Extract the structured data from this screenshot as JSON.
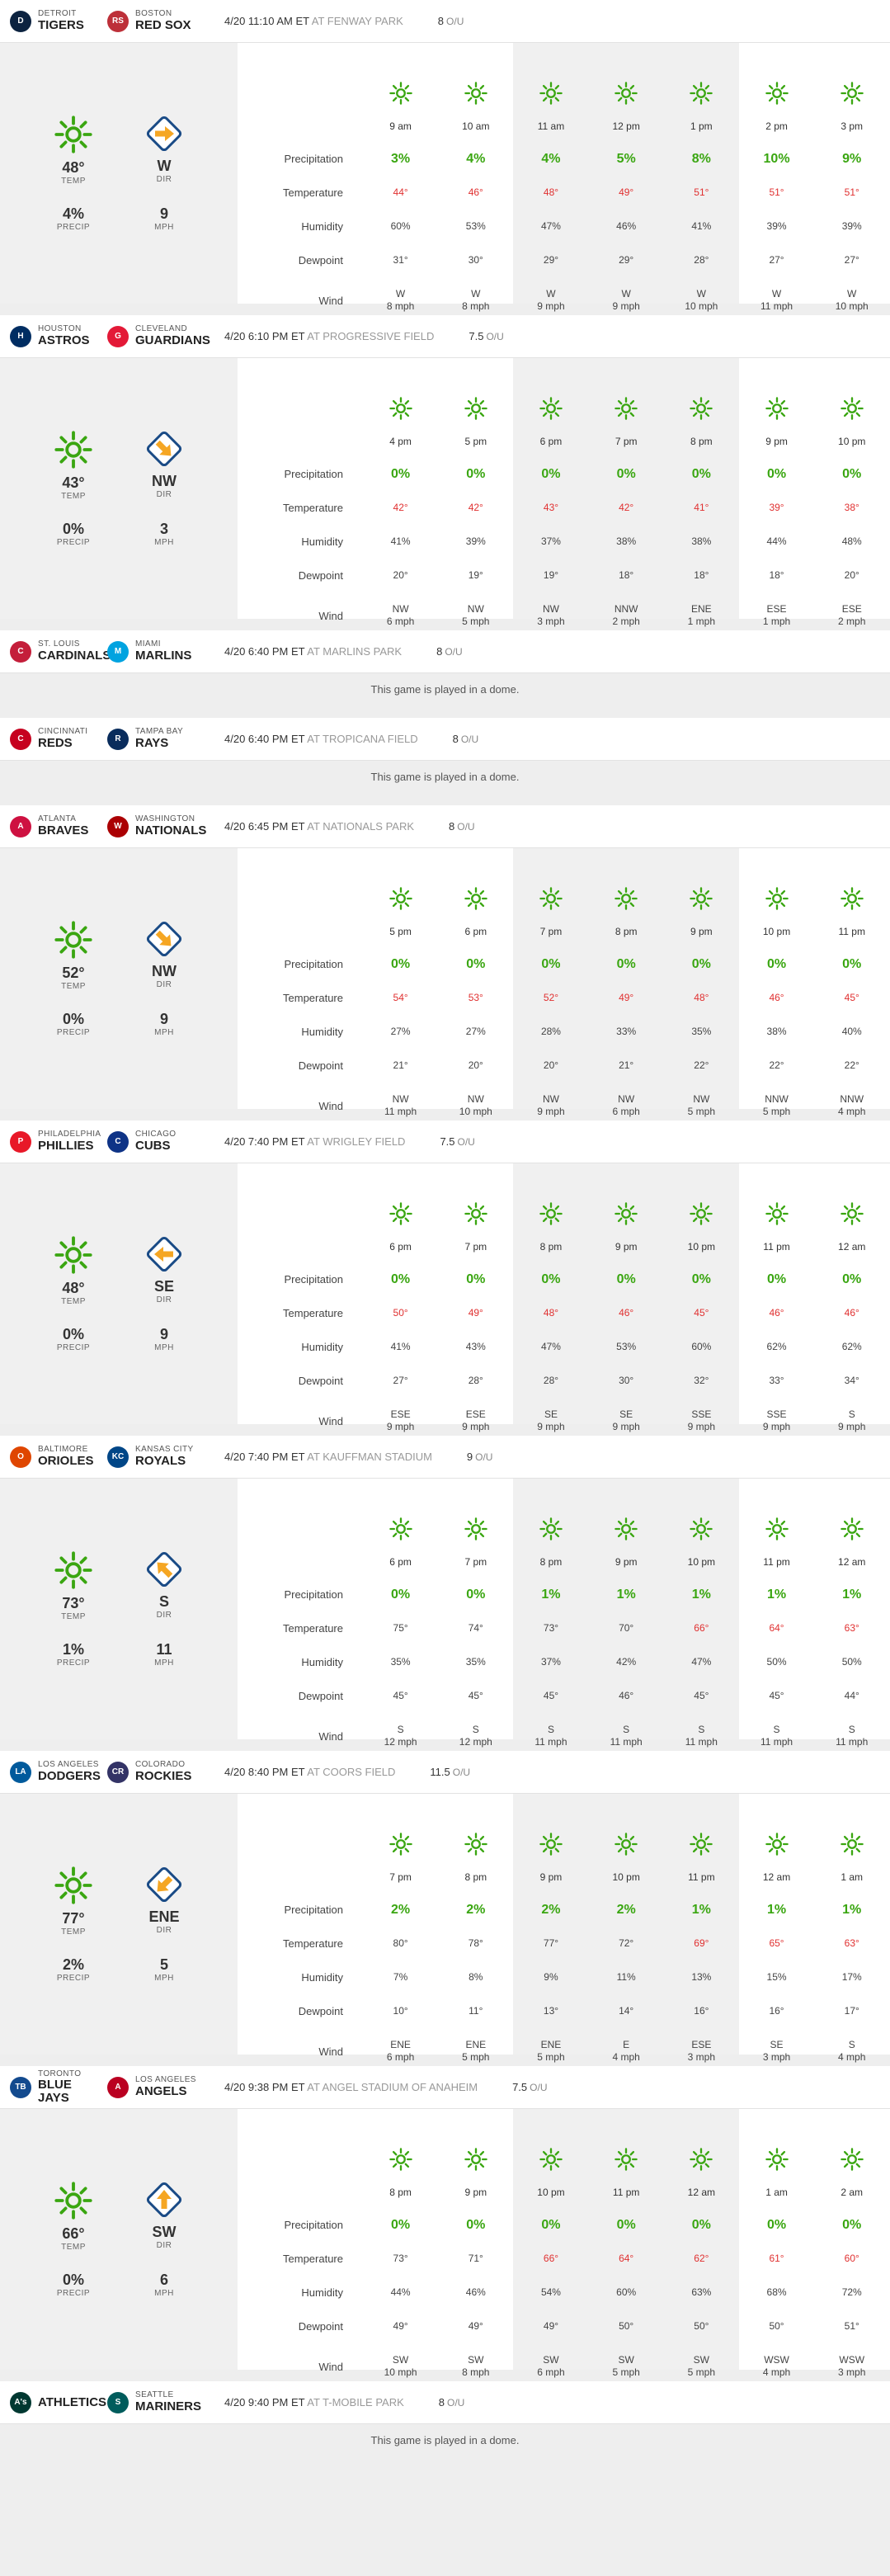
{
  "labels": {
    "temp": "TEMP",
    "precip": "PRECIP",
    "dir": "DIR",
    "mph": "MPH",
    "ou": "O/U",
    "dome": "This game is played in a dome.",
    "rows": [
      "Precipitation",
      "Temperature",
      "Humidity",
      "Dewpoint",
      "Wind"
    ]
  },
  "colors": {
    "sun": "#3aa611",
    "arrow": "#f5a623",
    "hot": "#e03030",
    "precip": "#3aa611"
  },
  "games": [
    {
      "away": {
        "city": "DETROIT",
        "name": "TIGERS",
        "logo": "D",
        "color": "#0c2340"
      },
      "home": {
        "city": "BOSTON",
        "name": "RED SOX",
        "logo": "RS",
        "color": "#bd3039"
      },
      "time": "4/20 11:10 AM ET",
      "venue": "AT FENWAY PARK",
      "ou": "8",
      "dome": false,
      "summary": {
        "temp": "48°",
        "precip": "4%",
        "dir": "W",
        "mph": "9",
        "rot": 90
      },
      "bands": [
        [
          2,
          4
        ]
      ],
      "hours": [
        {
          "t": "9 am",
          "p": "3%",
          "tmp": "44°",
          "hot": true,
          "h": "60%",
          "d": "31°",
          "wd": "W",
          "ws": "8 mph"
        },
        {
          "t": "10 am",
          "p": "4%",
          "tmp": "46°",
          "hot": true,
          "h": "53%",
          "d": "30°",
          "wd": "W",
          "ws": "8 mph"
        },
        {
          "t": "11 am",
          "p": "4%",
          "tmp": "48°",
          "hot": true,
          "h": "47%",
          "d": "29°",
          "wd": "W",
          "ws": "9 mph"
        },
        {
          "t": "12 pm",
          "p": "5%",
          "tmp": "49°",
          "hot": true,
          "h": "46%",
          "d": "29°",
          "wd": "W",
          "ws": "9 mph"
        },
        {
          "t": "1 pm",
          "p": "8%",
          "tmp": "51°",
          "hot": true,
          "h": "41%",
          "d": "28°",
          "wd": "W",
          "ws": "10 mph"
        },
        {
          "t": "2 pm",
          "p": "10%",
          "tmp": "51°",
          "hot": true,
          "h": "39%",
          "d": "27°",
          "wd": "W",
          "ws": "11 mph"
        },
        {
          "t": "3 pm",
          "p": "9%",
          "tmp": "51°",
          "hot": true,
          "h": "39%",
          "d": "27°",
          "wd": "W",
          "ws": "10 mph"
        }
      ]
    },
    {
      "away": {
        "city": "HOUSTON",
        "name": "ASTROS",
        "logo": "H",
        "color": "#002d62"
      },
      "home": {
        "city": "CLEVELAND",
        "name": "GUARDIANS",
        "logo": "G",
        "color": "#e31937"
      },
      "time": "4/20 6:10 PM ET",
      "venue": "AT PROGRESSIVE FIELD",
      "ou": "7.5",
      "dome": false,
      "summary": {
        "temp": "43°",
        "precip": "0%",
        "dir": "NW",
        "mph": "3",
        "rot": 135
      },
      "bands": [
        [
          2,
          4
        ]
      ],
      "hours": [
        {
          "t": "4 pm",
          "p": "0%",
          "tmp": "42°",
          "hot": true,
          "h": "41%",
          "d": "20°",
          "wd": "NW",
          "ws": "6 mph"
        },
        {
          "t": "5 pm",
          "p": "0%",
          "tmp": "42°",
          "hot": true,
          "h": "39%",
          "d": "19°",
          "wd": "NW",
          "ws": "5 mph"
        },
        {
          "t": "6 pm",
          "p": "0%",
          "tmp": "43°",
          "hot": true,
          "h": "37%",
          "d": "19°",
          "wd": "NW",
          "ws": "3 mph"
        },
        {
          "t": "7 pm",
          "p": "0%",
          "tmp": "42°",
          "hot": true,
          "h": "38%",
          "d": "18°",
          "wd": "NNW",
          "ws": "2 mph"
        },
        {
          "t": "8 pm",
          "p": "0%",
          "tmp": "41°",
          "hot": true,
          "h": "38%",
          "d": "18°",
          "wd": "ENE",
          "ws": "1 mph"
        },
        {
          "t": "9 pm",
          "p": "0%",
          "tmp": "39°",
          "hot": true,
          "h": "44%",
          "d": "18°",
          "wd": "ESE",
          "ws": "1 mph"
        },
        {
          "t": "10 pm",
          "p": "0%",
          "tmp": "38°",
          "hot": true,
          "h": "48%",
          "d": "20°",
          "wd": "ESE",
          "ws": "2 mph"
        }
      ]
    },
    {
      "away": {
        "city": "ST. LOUIS",
        "name": "CARDINALS",
        "logo": "C",
        "color": "#c41e3a"
      },
      "home": {
        "city": "MIAMI",
        "name": "MARLINS",
        "logo": "M",
        "color": "#00a3e0"
      },
      "time": "4/20 6:40 PM ET",
      "venue": "AT MARLINS PARK",
      "ou": "8",
      "dome": true
    },
    {
      "away": {
        "city": "CINCINNATI",
        "name": "REDS",
        "logo": "C",
        "color": "#c6011f"
      },
      "home": {
        "city": "TAMPA BAY",
        "name": "RAYS",
        "logo": "R",
        "color": "#092c5c"
      },
      "time": "4/20 6:40 PM ET",
      "venue": "AT TROPICANA FIELD",
      "ou": "8",
      "dome": true
    },
    {
      "away": {
        "city": "ATLANTA",
        "name": "BRAVES",
        "logo": "A",
        "color": "#ce1141"
      },
      "home": {
        "city": "WASHINGTON",
        "name": "NATIONALS",
        "logo": "W",
        "color": "#ab0003"
      },
      "time": "4/20 6:45 PM ET",
      "venue": "AT NATIONALS PARK",
      "ou": "8",
      "dome": false,
      "summary": {
        "temp": "52°",
        "precip": "0%",
        "dir": "NW",
        "mph": "9",
        "rot": 135
      },
      "bands": [
        [
          2,
          4
        ]
      ],
      "hours": [
        {
          "t": "5 pm",
          "p": "0%",
          "tmp": "54°",
          "hot": true,
          "h": "27%",
          "d": "21°",
          "wd": "NW",
          "ws": "11 mph"
        },
        {
          "t": "6 pm",
          "p": "0%",
          "tmp": "53°",
          "hot": true,
          "h": "27%",
          "d": "20°",
          "wd": "NW",
          "ws": "10 mph"
        },
        {
          "t": "7 pm",
          "p": "0%",
          "tmp": "52°",
          "hot": true,
          "h": "28%",
          "d": "20°",
          "wd": "NW",
          "ws": "9 mph"
        },
        {
          "t": "8 pm",
          "p": "0%",
          "tmp": "49°",
          "hot": true,
          "h": "33%",
          "d": "21°",
          "wd": "NW",
          "ws": "6 mph"
        },
        {
          "t": "9 pm",
          "p": "0%",
          "tmp": "48°",
          "hot": true,
          "h": "35%",
          "d": "22°",
          "wd": "NW",
          "ws": "5 mph"
        },
        {
          "t": "10 pm",
          "p": "0%",
          "tmp": "46°",
          "hot": true,
          "h": "38%",
          "d": "22°",
          "wd": "NNW",
          "ws": "5 mph"
        },
        {
          "t": "11 pm",
          "p": "0%",
          "tmp": "45°",
          "hot": true,
          "h": "40%",
          "d": "22°",
          "wd": "NNW",
          "ws": "4 mph"
        }
      ]
    },
    {
      "away": {
        "city": "PHILADELPHIA",
        "name": "PHILLIES",
        "logo": "P",
        "color": "#e81828"
      },
      "home": {
        "city": "CHICAGO",
        "name": "CUBS",
        "logo": "C",
        "color": "#0e3386"
      },
      "time": "4/20 7:40 PM ET",
      "venue": "AT WRIGLEY FIELD",
      "ou": "7.5",
      "dome": false,
      "summary": {
        "temp": "48°",
        "precip": "0%",
        "dir": "SE",
        "mph": "9",
        "rot": 270
      },
      "bands": [
        [
          2,
          4
        ]
      ],
      "hours": [
        {
          "t": "6 pm",
          "p": "0%",
          "tmp": "50°",
          "hot": true,
          "h": "41%",
          "d": "27°",
          "wd": "ESE",
          "ws": "9 mph"
        },
        {
          "t": "7 pm",
          "p": "0%",
          "tmp": "49°",
          "hot": true,
          "h": "43%",
          "d": "28°",
          "wd": "ESE",
          "ws": "9 mph"
        },
        {
          "t": "8 pm",
          "p": "0%",
          "tmp": "48°",
          "hot": true,
          "h": "47%",
          "d": "28°",
          "wd": "SE",
          "ws": "9 mph"
        },
        {
          "t": "9 pm",
          "p": "0%",
          "tmp": "46°",
          "hot": true,
          "h": "53%",
          "d": "30°",
          "wd": "SE",
          "ws": "9 mph"
        },
        {
          "t": "10 pm",
          "p": "0%",
          "tmp": "45°",
          "hot": true,
          "h": "60%",
          "d": "32°",
          "wd": "SSE",
          "ws": "9 mph"
        },
        {
          "t": "11 pm",
          "p": "0%",
          "tmp": "46°",
          "hot": true,
          "h": "62%",
          "d": "33°",
          "wd": "SSE",
          "ws": "9 mph"
        },
        {
          "t": "12 am",
          "p": "0%",
          "tmp": "46°",
          "hot": true,
          "h": "62%",
          "d": "34°",
          "wd": "S",
          "ws": "9 mph"
        }
      ]
    },
    {
      "away": {
        "city": "BALTIMORE",
        "name": "ORIOLES",
        "logo": "O",
        "color": "#df4601"
      },
      "home": {
        "city": "KANSAS CITY",
        "name": "ROYALS",
        "logo": "KC",
        "color": "#004687"
      },
      "time": "4/20 7:40 PM ET",
      "venue": "AT KAUFFMAN STADIUM",
      "ou": "9",
      "dome": false,
      "summary": {
        "temp": "73°",
        "precip": "1%",
        "dir": "S",
        "mph": "11",
        "rot": 315
      },
      "bands": [
        [
          2,
          4
        ]
      ],
      "hours": [
        {
          "t": "6 pm",
          "p": "0%",
          "tmp": "75°",
          "hot": false,
          "h": "35%",
          "d": "45°",
          "wd": "S",
          "ws": "12 mph"
        },
        {
          "t": "7 pm",
          "p": "0%",
          "tmp": "74°",
          "hot": false,
          "h": "35%",
          "d": "45°",
          "wd": "S",
          "ws": "12 mph"
        },
        {
          "t": "8 pm",
          "p": "1%",
          "tmp": "73°",
          "hot": false,
          "h": "37%",
          "d": "45°",
          "wd": "S",
          "ws": "11 mph"
        },
        {
          "t": "9 pm",
          "p": "1%",
          "tmp": "70°",
          "hot": false,
          "h": "42%",
          "d": "46°",
          "wd": "S",
          "ws": "11 mph"
        },
        {
          "t": "10 pm",
          "p": "1%",
          "tmp": "66°",
          "hot": true,
          "h": "47%",
          "d": "45°",
          "wd": "S",
          "ws": "11 mph"
        },
        {
          "t": "11 pm",
          "p": "1%",
          "tmp": "64°",
          "hot": true,
          "h": "50%",
          "d": "45°",
          "wd": "S",
          "ws": "11 mph"
        },
        {
          "t": "12 am",
          "p": "1%",
          "tmp": "63°",
          "hot": true,
          "h": "50%",
          "d": "44°",
          "wd": "S",
          "ws": "11 mph"
        }
      ]
    },
    {
      "away": {
        "city": "LOS ANGELES",
        "name": "DODGERS",
        "logo": "LA",
        "color": "#005a9c"
      },
      "home": {
        "city": "COLORADO",
        "name": "ROCKIES",
        "logo": "CR",
        "color": "#333366"
      },
      "time": "4/20 8:40 PM ET",
      "venue": "AT COORS FIELD",
      "ou": "11.5",
      "dome": false,
      "summary": {
        "temp": "77°",
        "precip": "2%",
        "dir": "ENE",
        "mph": "5",
        "rot": 225
      },
      "bands": [
        [
          2,
          4
        ]
      ],
      "hours": [
        {
          "t": "7 pm",
          "p": "2%",
          "tmp": "80°",
          "hot": false,
          "h": "7%",
          "d": "10°",
          "wd": "ENE",
          "ws": "6 mph"
        },
        {
          "t": "8 pm",
          "p": "2%",
          "tmp": "78°",
          "hot": false,
          "h": "8%",
          "d": "11°",
          "wd": "ENE",
          "ws": "5 mph"
        },
        {
          "t": "9 pm",
          "p": "2%",
          "tmp": "77°",
          "hot": false,
          "h": "9%",
          "d": "13°",
          "wd": "ENE",
          "ws": "5 mph"
        },
        {
          "t": "10 pm",
          "p": "2%",
          "tmp": "72°",
          "hot": false,
          "h": "11%",
          "d": "14°",
          "wd": "E",
          "ws": "4 mph"
        },
        {
          "t": "11 pm",
          "p": "1%",
          "tmp": "69°",
          "hot": true,
          "h": "13%",
          "d": "16°",
          "wd": "ESE",
          "ws": "3 mph"
        },
        {
          "t": "12 am",
          "p": "1%",
          "tmp": "65°",
          "hot": true,
          "h": "15%",
          "d": "16°",
          "wd": "SE",
          "ws": "3 mph"
        },
        {
          "t": "1 am",
          "p": "1%",
          "tmp": "63°",
          "hot": true,
          "h": "17%",
          "d": "17°",
          "wd": "S",
          "ws": "4 mph"
        }
      ]
    },
    {
      "away": {
        "city": "TORONTO",
        "name": "BLUE JAYS",
        "logo": "TB",
        "color": "#134a8e"
      },
      "home": {
        "city": "LOS ANGELES",
        "name": "ANGELS",
        "logo": "A",
        "color": "#ba0021"
      },
      "time": "4/20 9:38 PM ET",
      "venue": "AT ANGEL STADIUM OF ANAHEIM",
      "ou": "7.5",
      "dome": false,
      "summary": {
        "temp": "66°",
        "precip": "0%",
        "dir": "SW",
        "mph": "6",
        "rot": 0
      },
      "bands": [
        [
          2,
          4
        ]
      ],
      "hours": [
        {
          "t": "8 pm",
          "p": "0%",
          "tmp": "73°",
          "hot": false,
          "h": "44%",
          "d": "49°",
          "wd": "SW",
          "ws": "10 mph"
        },
        {
          "t": "9 pm",
          "p": "0%",
          "tmp": "71°",
          "hot": false,
          "h": "46%",
          "d": "49°",
          "wd": "SW",
          "ws": "8 mph"
        },
        {
          "t": "10 pm",
          "p": "0%",
          "tmp": "66°",
          "hot": true,
          "h": "54%",
          "d": "49°",
          "wd": "SW",
          "ws": "6 mph"
        },
        {
          "t": "11 pm",
          "p": "0%",
          "tmp": "64°",
          "hot": true,
          "h": "60%",
          "d": "50°",
          "wd": "SW",
          "ws": "5 mph"
        },
        {
          "t": "12 am",
          "p": "0%",
          "tmp": "62°",
          "hot": true,
          "h": "63%",
          "d": "50°",
          "wd": "SW",
          "ws": "5 mph"
        },
        {
          "t": "1 am",
          "p": "0%",
          "tmp": "61°",
          "hot": true,
          "h": "68%",
          "d": "50°",
          "wd": "WSW",
          "ws": "4 mph"
        },
        {
          "t": "2 am",
          "p": "0%",
          "tmp": "60°",
          "hot": true,
          "h": "72%",
          "d": "51°",
          "wd": "WSW",
          "ws": "3 mph"
        }
      ]
    },
    {
      "away": {
        "city": "",
        "name": "ATHLETICS",
        "logo": "A's",
        "color": "#003831"
      },
      "home": {
        "city": "SEATTLE",
        "name": "MARINERS",
        "logo": "S",
        "color": "#005c5c"
      },
      "time": "4/20 9:40 PM ET",
      "venue": "AT T-MOBILE PARK",
      "ou": "8",
      "dome": true
    }
  ]
}
